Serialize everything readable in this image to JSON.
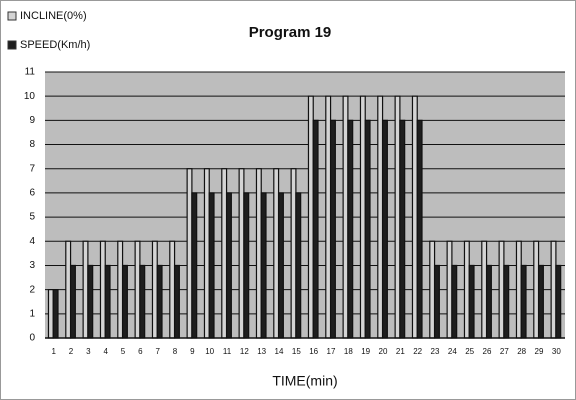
{
  "chart_data": {
    "type": "bar",
    "title": "Program 19",
    "x_label": "TIME(min)",
    "categories": [
      "1",
      "2",
      "3",
      "4",
      "5",
      "6",
      "7",
      "8",
      "9",
      "10",
      "11",
      "12",
      "13",
      "14",
      "15",
      "16",
      "17",
      "18",
      "19",
      "20",
      "21",
      "22",
      "23",
      "24",
      "25",
      "26",
      "27",
      "28",
      "29",
      "30"
    ],
    "series": [
      {
        "name": "INCLINE(0%)",
        "color": "#d4d4d4",
        "values": [
          2,
          4,
          4,
          4,
          4,
          4,
          4,
          4,
          7,
          7,
          7,
          7,
          7,
          7,
          7,
          10,
          10,
          10,
          10,
          10,
          10,
          10,
          4,
          4,
          4,
          4,
          4,
          4,
          4,
          4
        ]
      },
      {
        "name": "SPEED(Km/h)",
        "color": "#1e1e1e",
        "values": [
          2,
          3,
          3,
          3,
          3,
          3,
          3,
          3,
          6,
          6,
          6,
          6,
          6,
          6,
          6,
          9,
          9,
          9,
          9,
          9,
          9,
          9,
          3,
          3,
          3,
          3,
          3,
          3,
          3,
          3
        ]
      }
    ],
    "ylim": [
      0,
      11
    ],
    "yticks": [
      0,
      1,
      2,
      3,
      4,
      5,
      6,
      7,
      8,
      9,
      10,
      11
    ],
    "grid": true,
    "plot_background": "#bdbdbd",
    "legend": "top-left"
  }
}
